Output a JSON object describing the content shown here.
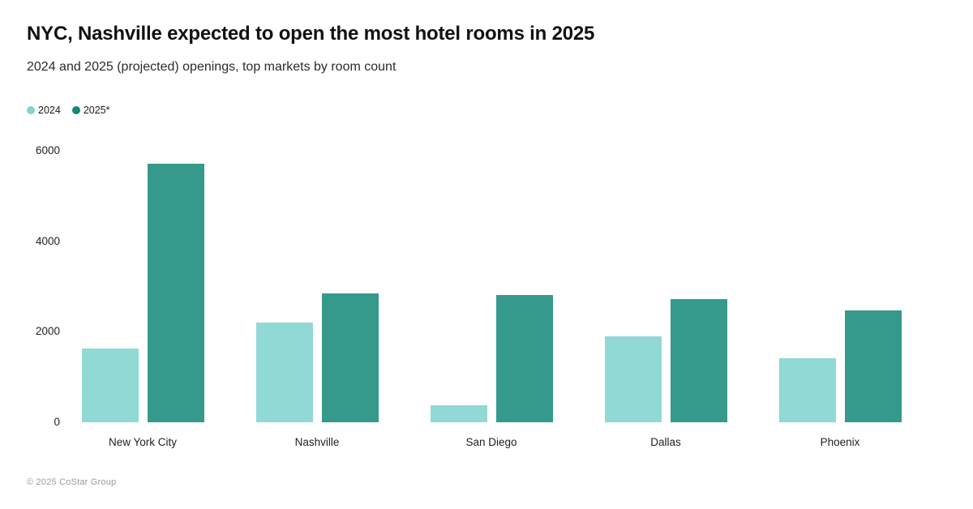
{
  "header": {
    "title": "NYC, Nashville expected to open the most hotel rooms in 2025",
    "subtitle": "2024 and 2025 (projected) openings, top markets by room count"
  },
  "legend": [
    {
      "label": "2024",
      "color": "#85D5CE"
    },
    {
      "label": "2025*",
      "color": "#0F8A74"
    }
  ],
  "footer": {
    "copyright": "© 2025 CoStar Group"
  },
  "chart_data": {
    "type": "bar",
    "title": "NYC, Nashville expected to open the most hotel rooms in 2025",
    "subtitle": "2024 and 2025 (projected) openings, top markets by room count",
    "categories": [
      "New York City",
      "Nashville",
      "San Diego",
      "Dallas",
      "Phoenix"
    ],
    "series": [
      {
        "name": "2024",
        "color": "#91D9D4",
        "values": [
          1630,
          2210,
          380,
          1900,
          1420
        ]
      },
      {
        "name": "2025*",
        "color": "#359A8C",
        "values": [
          5710,
          2840,
          2820,
          2730,
          2475
        ]
      }
    ],
    "xlabel": "",
    "ylabel": "",
    "yticks": [
      0,
      2000,
      4000,
      6000
    ],
    "ylim": [
      0,
      6000
    ],
    "grid": false,
    "legend_position": "top-left"
  }
}
